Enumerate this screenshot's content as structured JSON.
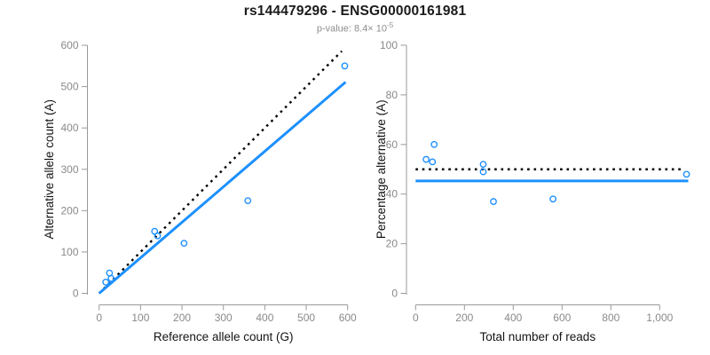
{
  "header": {
    "title": "rs144479296 - ENSG00000161981",
    "pvalue_prefix": "p-value: 8.4× 10",
    "pvalue_exponent": "-5"
  },
  "palette": {
    "point_blue": "#1E90FF",
    "line_blue": "#1E90FF",
    "dotted_black": "#000000",
    "axis_gray": "#9a9a9a",
    "tick_text_gray": "#8a8a8a"
  },
  "chart_data": [
    {
      "name": "allele-count-scatter",
      "type": "scatter",
      "xlabel": "Reference allele count (G)",
      "ylabel": "Alternative allele count (A)",
      "xlim": [
        0,
        600
      ],
      "ylim": [
        0,
        600
      ],
      "xticks": [
        0,
        100,
        200,
        300,
        400,
        500,
        600
      ],
      "xtick_labels": [
        "0",
        "100",
        "200",
        "300",
        "400",
        "500",
        "600"
      ],
      "yticks": [
        0,
        100,
        200,
        300,
        400,
        500,
        600
      ],
      "ytick_labels": [
        "0",
        "100",
        "200",
        "300",
        "400",
        "500",
        "600"
      ],
      "grid": false,
      "legend": "none",
      "point_color": "#1E90FF",
      "points": [
        [
          16,
          27
        ],
        [
          25,
          49
        ],
        [
          29,
          36
        ],
        [
          134,
          150
        ],
        [
          141,
          139
        ],
        [
          205,
          121
        ],
        [
          359,
          224
        ],
        [
          593,
          550
        ]
      ],
      "lines": [
        {
          "name": "identity-line",
          "style": "dotted",
          "color": "#000000",
          "points": [
            [
              0,
              0
            ],
            [
              586,
              586
            ]
          ]
        },
        {
          "name": "fit-line",
          "style": "solid",
          "color": "#1E90FF",
          "points": [
            [
              0,
              0
            ],
            [
              595,
              511
            ]
          ]
        }
      ]
    },
    {
      "name": "percentage-alternative-scatter",
      "type": "scatter",
      "xlabel": "Total number of reads",
      "ylabel": "Percentage alternative (A)",
      "xlim": [
        0,
        1150
      ],
      "ylim": [
        0,
        100
      ],
      "xticks": [
        0,
        200,
        400,
        600,
        800,
        1000
      ],
      "xtick_labels": [
        "0",
        "200",
        "400",
        "600",
        "800",
        "1,000"
      ],
      "yticks": [
        0,
        20,
        40,
        60,
        80,
        100
      ],
      "ytick_labels": [
        "0",
        "20",
        "40",
        "60",
        "80",
        "100"
      ],
      "grid": false,
      "legend": "none",
      "point_color": "#1E90FF",
      "points": [
        [
          43,
          54
        ],
        [
          69,
          53
        ],
        [
          76,
          60
        ],
        [
          277,
          52
        ],
        [
          277,
          49
        ],
        [
          319,
          37
        ],
        [
          563,
          38
        ],
        [
          1110,
          48
        ]
      ],
      "lines": [
        {
          "name": "expected-50pct-line",
          "style": "dotted",
          "color": "#000000",
          "points": [
            [
              0,
              50
            ],
            [
              1090,
              50
            ]
          ]
        },
        {
          "name": "fit-line",
          "style": "solid",
          "color": "#1E90FF",
          "points": [
            [
              0,
              45.3
            ],
            [
              1117,
              45.3
            ]
          ]
        }
      ]
    }
  ]
}
